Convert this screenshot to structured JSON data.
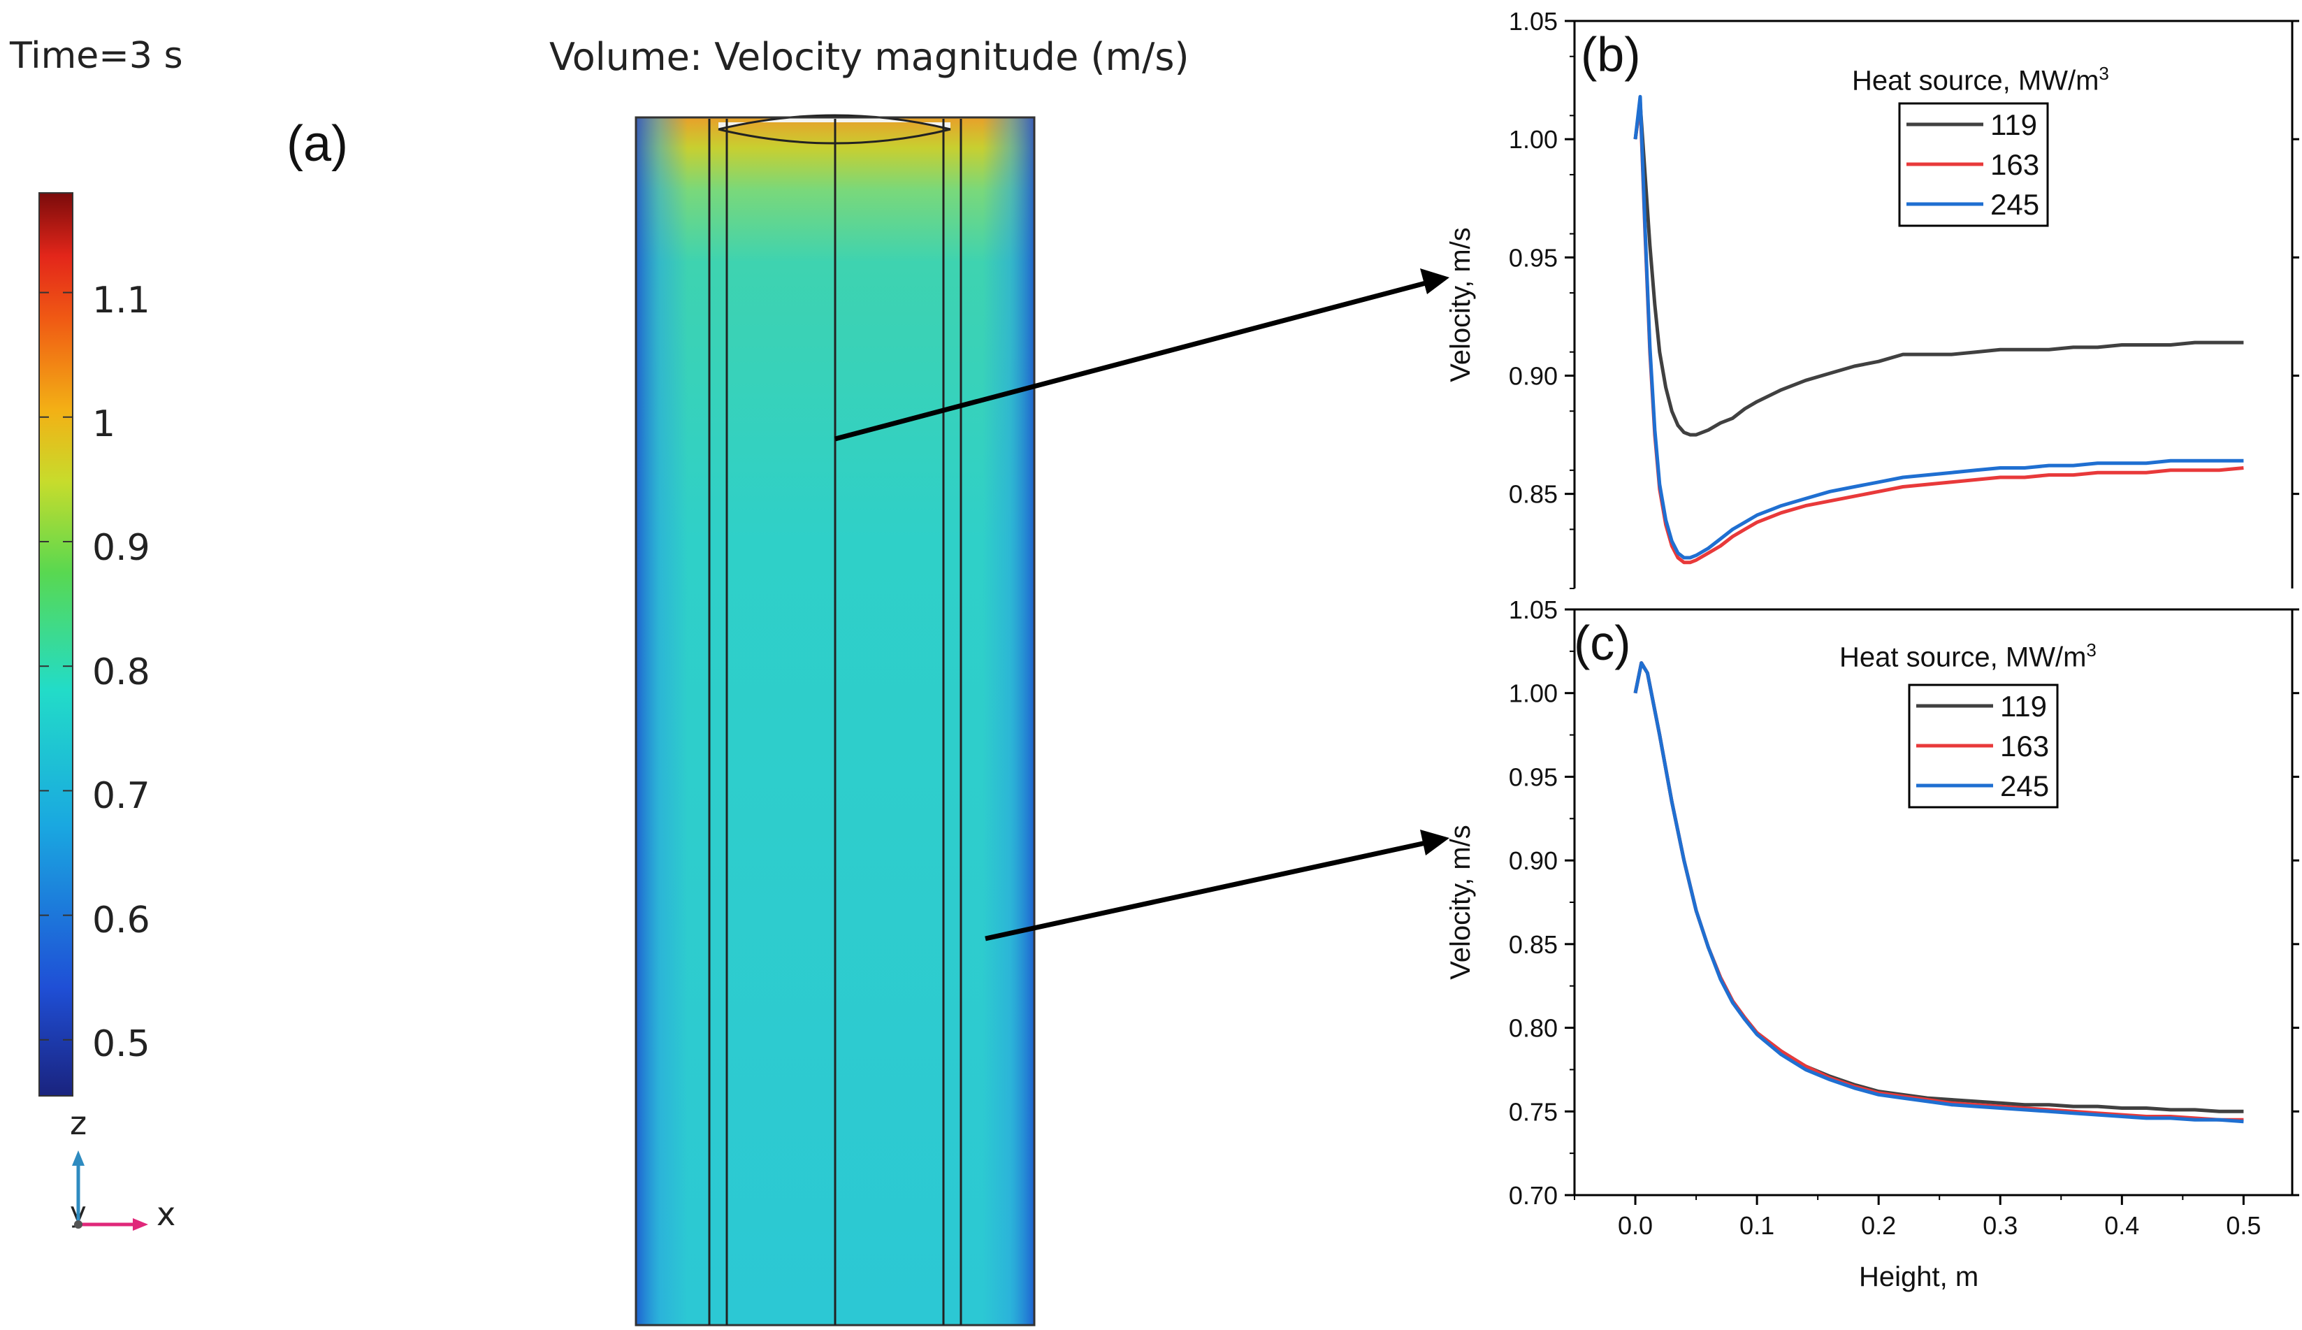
{
  "panel_a": {
    "time_label": "Time=3 s",
    "title": "Volume: Velocity magnitude (m/s)",
    "panel_label": "(a)",
    "colorbar_ticks": [
      "1.1",
      "1",
      "0.9",
      "0.8",
      "0.7",
      "0.6",
      "0.5"
    ],
    "colorbar_tick_values": [
      1.1,
      1.0,
      0.9,
      0.8,
      0.7,
      0.6,
      0.5
    ],
    "colorbar_range": [
      0.455,
      1.18
    ],
    "axis_z": "z",
    "axis_x": "x",
    "axis_y": "y"
  },
  "chart_data": [
    {
      "type": "line",
      "panel_label": "(b)",
      "title": "",
      "xlabel": "",
      "ylabel": "Velocity, m/s",
      "xlim": [
        -0.05,
        0.54
      ],
      "ylim": [
        0.81,
        1.05
      ],
      "yticks": [
        0.85,
        0.9,
        0.95,
        1.0,
        1.05
      ],
      "ytick_labels": [
        "0.85",
        "0.90",
        "0.95",
        "1.00",
        "1.05"
      ],
      "legend_title": "Heat source, MW/m",
      "legend_title_sup": "3",
      "legend_position": "top-right",
      "series": [
        {
          "name": "119",
          "color": "#404040",
          "x": [
            0,
            0.004,
            0.008,
            0.012,
            0.016,
            0.02,
            0.025,
            0.03,
            0.035,
            0.04,
            0.045,
            0.05,
            0.06,
            0.07,
            0.08,
            0.09,
            0.1,
            0.12,
            0.14,
            0.16,
            0.18,
            0.2,
            0.22,
            0.24,
            0.26,
            0.28,
            0.3,
            0.32,
            0.34,
            0.36,
            0.38,
            0.4,
            0.42,
            0.44,
            0.46,
            0.48,
            0.5
          ],
          "values": [
            1.0,
            1.015,
            0.985,
            0.955,
            0.93,
            0.91,
            0.895,
            0.885,
            0.879,
            0.876,
            0.875,
            0.875,
            0.877,
            0.88,
            0.882,
            0.886,
            0.889,
            0.894,
            0.898,
            0.901,
            0.904,
            0.906,
            0.909,
            0.909,
            0.909,
            0.91,
            0.911,
            0.911,
            0.911,
            0.912,
            0.912,
            0.913,
            0.913,
            0.913,
            0.914,
            0.914,
            0.914
          ]
        },
        {
          "name": "163",
          "color": "#e8393a",
          "x": [
            0,
            0.004,
            0.008,
            0.012,
            0.016,
            0.02,
            0.025,
            0.03,
            0.035,
            0.04,
            0.045,
            0.05,
            0.06,
            0.07,
            0.08,
            0.09,
            0.1,
            0.12,
            0.14,
            0.16,
            0.18,
            0.2,
            0.22,
            0.24,
            0.26,
            0.28,
            0.3,
            0.32,
            0.34,
            0.36,
            0.38,
            0.4,
            0.42,
            0.44,
            0.46,
            0.48,
            0.5
          ],
          "values": [
            1.0,
            1.016,
            0.96,
            0.91,
            0.875,
            0.852,
            0.837,
            0.828,
            0.823,
            0.821,
            0.821,
            0.822,
            0.825,
            0.828,
            0.832,
            0.835,
            0.838,
            0.842,
            0.845,
            0.847,
            0.849,
            0.851,
            0.853,
            0.854,
            0.855,
            0.856,
            0.857,
            0.857,
            0.858,
            0.858,
            0.859,
            0.859,
            0.859,
            0.86,
            0.86,
            0.86,
            0.861
          ]
        },
        {
          "name": "245",
          "color": "#1f6fd1",
          "x": [
            0,
            0.004,
            0.008,
            0.012,
            0.016,
            0.02,
            0.025,
            0.03,
            0.035,
            0.04,
            0.045,
            0.05,
            0.06,
            0.07,
            0.08,
            0.09,
            0.1,
            0.12,
            0.14,
            0.16,
            0.18,
            0.2,
            0.22,
            0.24,
            0.26,
            0.28,
            0.3,
            0.32,
            0.34,
            0.36,
            0.38,
            0.4,
            0.42,
            0.44,
            0.46,
            0.48,
            0.5
          ],
          "values": [
            1.0,
            1.018,
            0.962,
            0.912,
            0.877,
            0.854,
            0.839,
            0.83,
            0.825,
            0.823,
            0.823,
            0.824,
            0.827,
            0.831,
            0.835,
            0.838,
            0.841,
            0.845,
            0.848,
            0.851,
            0.853,
            0.855,
            0.857,
            0.858,
            0.859,
            0.86,
            0.861,
            0.861,
            0.862,
            0.862,
            0.863,
            0.863,
            0.863,
            0.864,
            0.864,
            0.864,
            0.864
          ]
        }
      ]
    },
    {
      "type": "line",
      "panel_label": "(c)",
      "title": "",
      "xlabel": "Height, m",
      "ylabel": "Velocity, m/s",
      "xlim": [
        -0.05,
        0.54
      ],
      "ylim": [
        0.7,
        1.05
      ],
      "xticks": [
        0.0,
        0.1,
        0.2,
        0.3,
        0.4,
        0.5
      ],
      "xtick_labels": [
        "0.0",
        "0.1",
        "0.2",
        "0.3",
        "0.4",
        "0.5"
      ],
      "yticks": [
        0.7,
        0.75,
        0.8,
        0.85,
        0.9,
        0.95,
        1.0,
        1.05
      ],
      "ytick_labels": [
        "0.70",
        "0.75",
        "0.80",
        "0.85",
        "0.90",
        "0.95",
        "1.00",
        "1.05"
      ],
      "legend_title": "Heat source, MW/m",
      "legend_title_sup": "3",
      "legend_position": "top-right",
      "series": [
        {
          "name": "119",
          "color": "#404040",
          "x": [
            0,
            0.005,
            0.01,
            0.02,
            0.03,
            0.04,
            0.05,
            0.06,
            0.07,
            0.08,
            0.09,
            0.1,
            0.12,
            0.14,
            0.16,
            0.18,
            0.2,
            0.22,
            0.24,
            0.26,
            0.28,
            0.3,
            0.32,
            0.34,
            0.36,
            0.38,
            0.4,
            0.42,
            0.44,
            0.46,
            0.48,
            0.5
          ],
          "values": [
            1.0,
            1.018,
            1.012,
            0.975,
            0.935,
            0.9,
            0.87,
            0.848,
            0.83,
            0.816,
            0.806,
            0.797,
            0.786,
            0.777,
            0.771,
            0.766,
            0.762,
            0.76,
            0.758,
            0.757,
            0.756,
            0.755,
            0.754,
            0.754,
            0.753,
            0.753,
            0.752,
            0.752,
            0.751,
            0.751,
            0.75,
            0.75
          ]
        },
        {
          "name": "163",
          "color": "#e8393a",
          "x": [
            0,
            0.005,
            0.01,
            0.02,
            0.03,
            0.04,
            0.05,
            0.06,
            0.07,
            0.08,
            0.09,
            0.1,
            0.12,
            0.14,
            0.16,
            0.18,
            0.2,
            0.22,
            0.24,
            0.26,
            0.28,
            0.3,
            0.32,
            0.34,
            0.36,
            0.38,
            0.4,
            0.42,
            0.44,
            0.46,
            0.48,
            0.5
          ],
          "values": [
            1.0,
            1.018,
            1.012,
            0.975,
            0.935,
            0.9,
            0.87,
            0.848,
            0.83,
            0.816,
            0.806,
            0.797,
            0.786,
            0.777,
            0.77,
            0.765,
            0.761,
            0.759,
            0.757,
            0.755,
            0.754,
            0.753,
            0.752,
            0.751,
            0.75,
            0.749,
            0.748,
            0.747,
            0.747,
            0.746,
            0.745,
            0.745
          ]
        },
        {
          "name": "245",
          "color": "#1f6fd1",
          "x": [
            0,
            0.005,
            0.01,
            0.02,
            0.03,
            0.04,
            0.05,
            0.06,
            0.07,
            0.08,
            0.09,
            0.1,
            0.12,
            0.14,
            0.16,
            0.18,
            0.2,
            0.22,
            0.24,
            0.26,
            0.28,
            0.3,
            0.32,
            0.34,
            0.36,
            0.38,
            0.4,
            0.42,
            0.44,
            0.46,
            0.48,
            0.5
          ],
          "values": [
            1.0,
            1.018,
            1.012,
            0.975,
            0.935,
            0.9,
            0.87,
            0.848,
            0.829,
            0.815,
            0.805,
            0.796,
            0.784,
            0.775,
            0.769,
            0.764,
            0.76,
            0.758,
            0.756,
            0.754,
            0.753,
            0.752,
            0.751,
            0.75,
            0.749,
            0.748,
            0.747,
            0.746,
            0.746,
            0.745,
            0.745,
            0.744
          ]
        }
      ]
    }
  ]
}
